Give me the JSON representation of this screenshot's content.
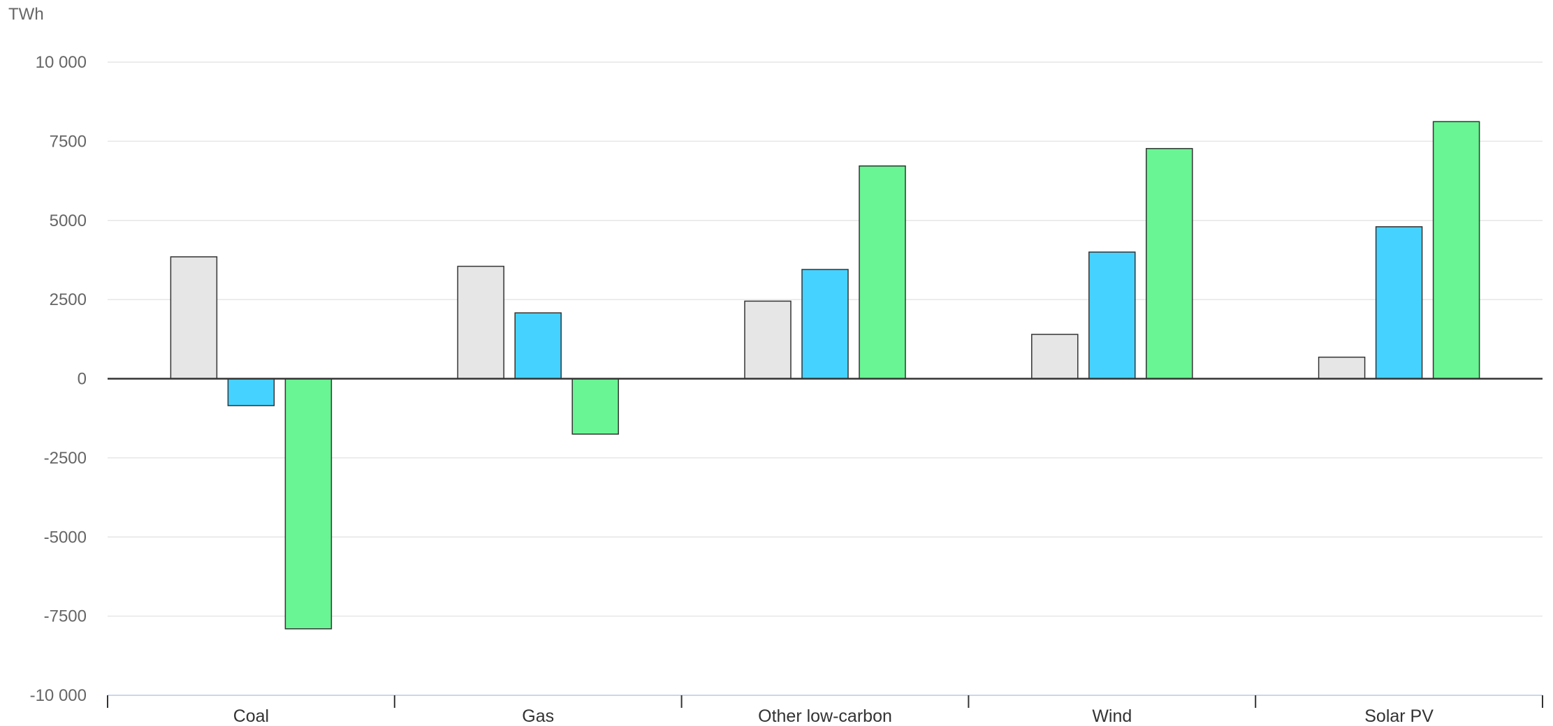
{
  "chart_data": {
    "type": "bar",
    "unit_label": "TWh",
    "categories": [
      "Coal",
      "Gas",
      "Other low-carbon",
      "Wind",
      "Solar PV"
    ],
    "series": [
      {
        "values": [
          3850,
          3550,
          2450,
          1400,
          680
        ],
        "color": "#e6e6e6"
      },
      {
        "values": [
          -850,
          2080,
          3450,
          4000,
          4800
        ],
        "color": "#46d2ff"
      },
      {
        "values": [
          -7900,
          -1750,
          6720,
          7270,
          8120
        ],
        "color": "#69f593"
      }
    ],
    "ylim": [
      -10000,
      10000
    ],
    "yticks": [
      {
        "value": 10000,
        "label": "10 000"
      },
      {
        "value": 7500,
        "label": "7500"
      },
      {
        "value": 5000,
        "label": "5000"
      },
      {
        "value": 2500,
        "label": "2500"
      },
      {
        "value": 0,
        "label": "0"
      },
      {
        "value": -2500,
        "label": "-2500"
      },
      {
        "value": -5000,
        "label": "-5000"
      },
      {
        "value": -7500,
        "label": "-7500"
      },
      {
        "value": -10000,
        "label": "-10 000"
      }
    ],
    "grid": true,
    "legend": "none"
  }
}
